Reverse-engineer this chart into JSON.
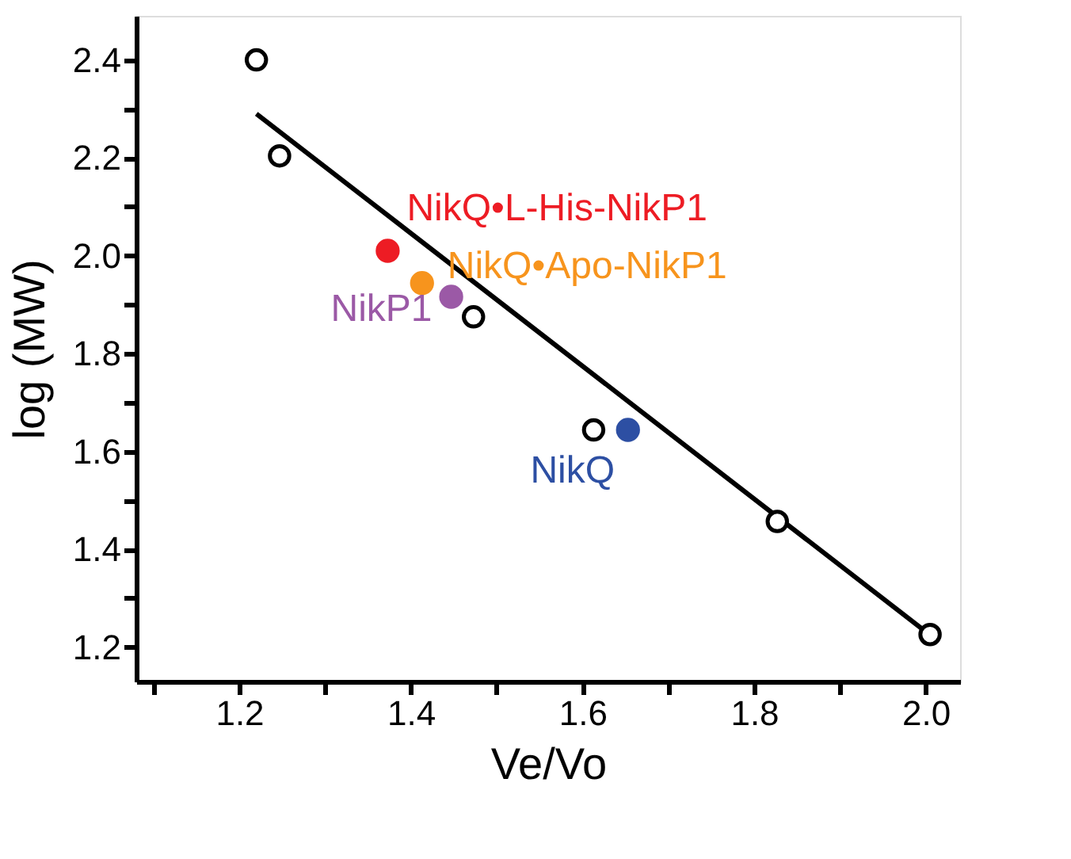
{
  "chart_data": {
    "type": "scatter",
    "xlabel": "Ve/Vo",
    "ylabel": "log (MW)",
    "xlim": [
      1.08,
      2.04
    ],
    "ylim": [
      1.13,
      2.49
    ],
    "xticks": [
      {
        "value": 1.1,
        "label": null
      },
      1.2,
      {
        "value": 1.3,
        "label": null
      },
      1.4,
      {
        "value": 1.5,
        "label": null
      },
      1.6,
      {
        "value": 1.7,
        "label": null
      },
      1.8,
      {
        "value": 1.9,
        "label": null
      },
      {
        "value": 2.0,
        "label": "2.0"
      }
    ],
    "yticks": [
      1.2,
      {
        "value": 1.3,
        "label": null
      },
      1.4,
      {
        "value": 1.5,
        "label": null
      },
      1.6,
      {
        "value": 1.7,
        "label": null
      },
      1.8,
      {
        "value": 1.9,
        "label": null
      },
      {
        "value": 2.0,
        "label": "2.0"
      },
      {
        "value": 2.1,
        "label": null
      },
      2.2,
      {
        "value": 2.3,
        "label": null
      },
      2.4
    ],
    "grid": false,
    "legend": false,
    "marker": "circle",
    "series": [
      {
        "type": "line",
        "color": "#000000",
        "x": [
          1.22,
          2.005
        ],
        "values": [
          2.29,
          1.225
        ],
        "marker": "none",
        "line_style": "solid"
      },
      {
        "color": "#000000",
        "x": [
          1.22,
          1.247,
          1.473,
          1.613,
          1.827,
          2.005
        ],
        "values": [
          2.4,
          2.204,
          1.875,
          1.644,
          1.457,
          1.226
        ]
      },
      {
        "name": "NikQ•L-His-NikP1",
        "color": "#ed1c24",
        "x": [
          1.373
        ],
        "values": [
          2.01
        ]
      },
      {
        "name": "NikQ•Apo-NikP1",
        "color": "#f7941d",
        "x": [
          1.413
        ],
        "values": [
          1.944
        ]
      },
      {
        "name": "NikP1",
        "color": "#9b59a6",
        "x": [
          1.447
        ],
        "values": [
          1.916
        ]
      },
      {
        "name": "NikQ",
        "color": "#2d4fa3",
        "x": [
          1.653
        ],
        "values": [
          1.644
        ]
      }
    ]
  }
}
